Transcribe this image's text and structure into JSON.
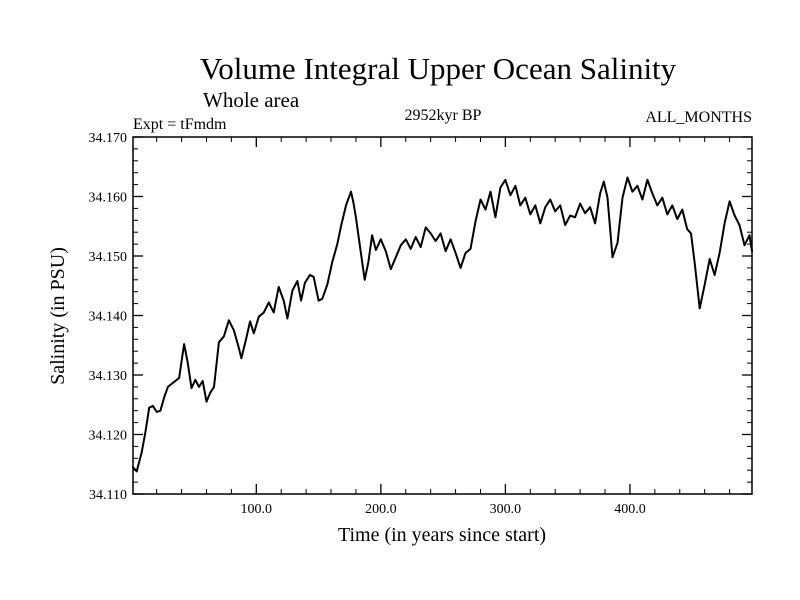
{
  "chart_data": {
    "type": "line",
    "title": "Volume Integral Upper Ocean Salinity",
    "subtitle": "Whole area",
    "left_annotation": "Expt = tFmdm",
    "center_annotation": "2952kyr BP",
    "right_annotation": "ALL_MONTHS",
    "xlabel": "Time (in years since start)",
    "ylabel": "Salinity (in PSU)",
    "xlim": [
      1,
      498
    ],
    "ylim": [
      34.11,
      34.17
    ],
    "x_ticks": [
      100,
      200,
      300,
      400
    ],
    "x_tick_labels": [
      "100.0",
      "200.0",
      "300.0",
      "400.0"
    ],
    "y_ticks": [
      34.11,
      34.12,
      34.13,
      34.14,
      34.15,
      34.16,
      34.17
    ],
    "y_tick_labels": [
      "34.110",
      "34.120",
      "34.130",
      "34.140",
      "34.150",
      "34.160",
      "34.170"
    ],
    "grid": false,
    "series": [
      {
        "name": "salinity",
        "x": [
          1,
          4,
          8,
          11,
          14,
          17,
          20,
          23,
          26,
          29,
          32,
          35,
          38,
          42,
          45,
          48,
          51,
          54,
          57,
          60,
          63,
          66,
          70,
          74,
          78,
          82,
          86,
          88,
          92,
          95,
          98,
          102,
          106,
          110,
          114,
          118,
          122,
          125,
          129,
          133,
          136,
          139,
          143,
          146,
          150,
          153,
          157,
          161,
          165,
          168,
          172,
          176,
          178,
          180,
          184,
          187,
          190,
          193,
          196,
          200,
          204,
          208,
          212,
          216,
          220,
          224,
          228,
          232,
          236,
          240,
          244,
          248,
          252,
          256,
          260,
          264,
          268,
          272,
          276,
          280,
          284,
          288,
          292,
          296,
          300,
          304,
          308,
          312,
          316,
          320,
          324,
          328,
          332,
          336,
          340,
          344,
          348,
          352,
          356,
          360,
          364,
          368,
          372,
          376,
          379,
          382,
          386,
          390,
          394,
          398,
          402,
          406,
          410,
          414,
          418,
          422,
          426,
          430,
          434,
          438,
          442,
          446,
          449,
          452,
          456,
          460,
          464,
          468,
          472,
          476,
          480,
          484,
          488,
          492,
          496,
          498
        ],
        "values": [
          34.1145,
          34.1138,
          34.117,
          34.1205,
          34.1245,
          34.1248,
          34.1238,
          34.124,
          34.1262,
          34.128,
          34.1285,
          34.129,
          34.1295,
          34.1352,
          34.132,
          34.1278,
          34.1292,
          34.128,
          34.129,
          34.1255,
          34.127,
          34.128,
          34.1355,
          34.1365,
          34.1392,
          34.1375,
          34.1345,
          34.1328,
          34.1362,
          34.139,
          34.137,
          34.1398,
          34.1405,
          34.1422,
          34.1405,
          34.1448,
          34.1425,
          34.1395,
          34.1442,
          34.1458,
          34.1425,
          34.1455,
          34.1468,
          34.1465,
          34.1425,
          34.1428,
          34.1452,
          34.149,
          34.152,
          34.155,
          34.1585,
          34.1608,
          34.159,
          34.1565,
          34.1505,
          34.146,
          34.149,
          34.1535,
          34.151,
          34.1528,
          34.1508,
          34.1478,
          34.1498,
          34.1518,
          34.1528,
          34.1512,
          34.1532,
          34.1515,
          34.1548,
          34.1538,
          34.1525,
          34.1538,
          34.1508,
          34.1528,
          34.1505,
          34.148,
          34.1505,
          34.1512,
          34.1558,
          34.1595,
          34.1578,
          34.1608,
          34.1565,
          34.1615,
          34.1628,
          34.1602,
          34.1618,
          34.1585,
          34.1598,
          34.157,
          34.1585,
          34.1555,
          34.1582,
          34.1595,
          34.1575,
          34.1585,
          34.1552,
          34.1568,
          34.1565,
          34.1588,
          34.1572,
          34.1582,
          34.1555,
          34.1605,
          34.1625,
          34.1598,
          34.1498,
          34.1522,
          34.1598,
          34.1632,
          34.1608,
          34.1618,
          34.1595,
          34.1628,
          34.1605,
          34.1585,
          34.1598,
          34.157,
          34.1585,
          34.1562,
          34.1578,
          34.1545,
          34.1538,
          34.1488,
          34.1412,
          34.1452,
          34.1495,
          34.1468,
          34.1505,
          34.1555,
          34.1592,
          34.1568,
          34.1552,
          34.1518,
          34.1535,
          34.1508
        ]
      }
    ]
  }
}
